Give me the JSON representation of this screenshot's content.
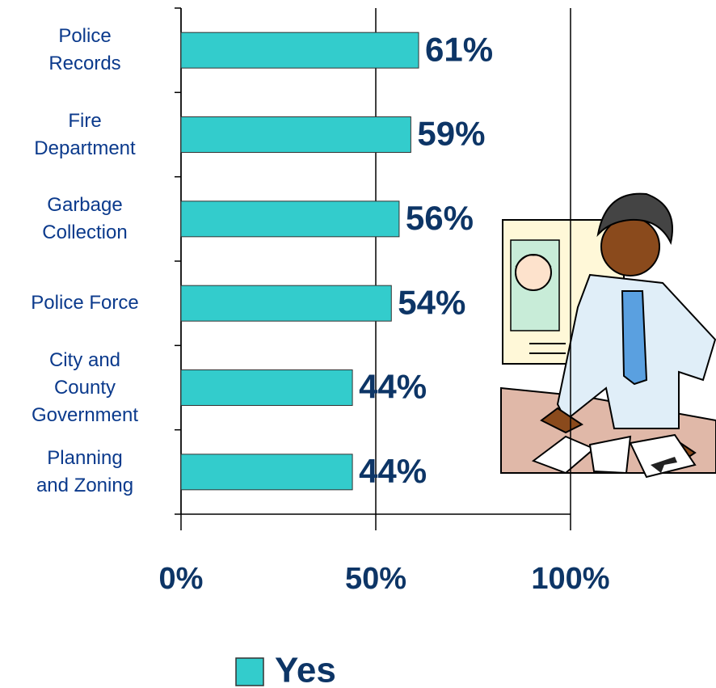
{
  "chart_data": {
    "type": "bar",
    "orientation": "horizontal",
    "categories": [
      "Police\nRecords",
      "Fire\nDepartment",
      "Garbage\nCollection",
      "Police Force",
      "City and\nCounty\nGovernment",
      "Planning\nand Zoning"
    ],
    "series": [
      {
        "name": "Yes",
        "color": "#33cccc",
        "values": [
          61,
          59,
          56,
          54,
          44,
          44
        ],
        "value_labels": [
          "61%",
          "59%",
          "56%",
          "54%",
          "44%",
          "44%"
        ]
      }
    ],
    "xlim": [
      0,
      100
    ],
    "xticks": [
      {
        "value": 0,
        "label": "0%"
      },
      {
        "value": 50,
        "label": "50%"
      },
      {
        "value": 100,
        "label": "100%"
      }
    ],
    "grid": true,
    "legend": "bottom"
  }
}
